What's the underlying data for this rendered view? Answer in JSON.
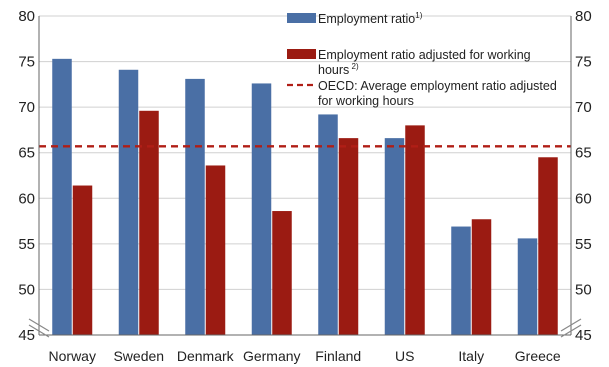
{
  "chart_data": {
    "type": "bar",
    "categories": [
      "Norway",
      "Sweden",
      "Denmark",
      "Germany",
      "Finland",
      "US",
      "Italy",
      "Greece"
    ],
    "series": [
      {
        "name": "Employment ratio",
        "name_sup": "1)",
        "color": "#4a6fa5",
        "values": [
          75.3,
          74.1,
          73.1,
          72.6,
          69.2,
          66.6,
          56.9,
          55.6
        ]
      },
      {
        "name": "Employment ratio adjusted for working hours",
        "name_sup": "2)",
        "color": "#9b1b12",
        "values": [
          61.4,
          69.6,
          63.6,
          58.6,
          66.6,
          68.0,
          57.7,
          64.5
        ]
      }
    ],
    "reference_line": {
      "name": "OECD: Average employment ratio adjusted for working hours",
      "value": 65.7,
      "color": "#b01e16",
      "style": "dashed"
    },
    "ylim": [
      45,
      80
    ],
    "yticks": [
      "45",
      "50",
      "55",
      "60",
      "65",
      "70",
      "75",
      "80"
    ],
    "y_axis_break": true,
    "secondary_y_axis": true,
    "legend_position": "top-right",
    "title": "",
    "xlabel": "",
    "ylabel": ""
  }
}
